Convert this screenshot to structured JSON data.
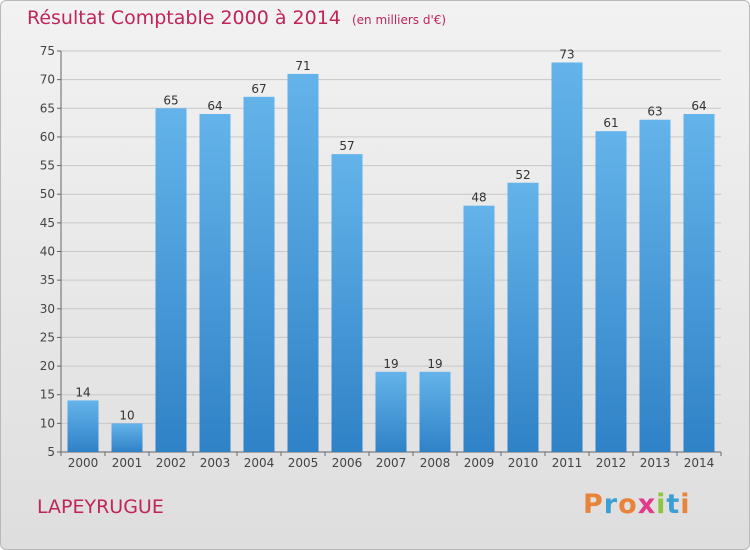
{
  "header": {
    "title": "Résultat Comptable 2000 à 2014",
    "subtitle": "(en milliers d'€)"
  },
  "footer": {
    "place": "LAPEYRUGUE",
    "brand": "Proxiti",
    "brand_colors": [
      "#e9833a",
      "#3c9fd4",
      "#e9833a",
      "#e23a8a",
      "#8cc63e",
      "#3c9fd4",
      "#e9833a"
    ]
  },
  "colors": {
    "accent": "#c0245a",
    "bar_light": "#64b3ea",
    "bar_dark": "#2f82c6"
  },
  "chart_data": {
    "type": "bar",
    "title": "Résultat Comptable 2000 à 2014",
    "subtitle": "(en milliers d'€)",
    "categories": [
      "2000",
      "2001",
      "2002",
      "2003",
      "2004",
      "2005",
      "2006",
      "2007",
      "2008",
      "2009",
      "2010",
      "2011",
      "2012",
      "2013",
      "2014"
    ],
    "values": [
      14,
      10,
      65,
      64,
      67,
      71,
      57,
      19,
      19,
      48,
      52,
      73,
      61,
      63,
      64
    ],
    "ylim": [
      5,
      75
    ],
    "yticks": [
      5,
      10,
      15,
      20,
      25,
      30,
      35,
      40,
      45,
      50,
      55,
      60,
      65,
      70,
      75
    ],
    "grid": true,
    "data_labels": true
  }
}
